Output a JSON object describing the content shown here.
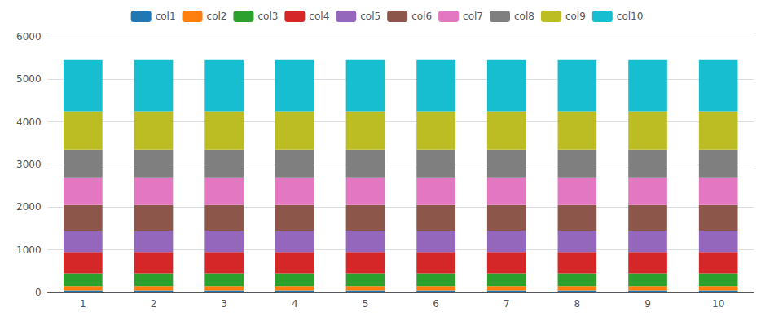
{
  "chart_data": {
    "type": "bar",
    "stacked": true,
    "categories": [
      1,
      2,
      3,
      4,
      5,
      6,
      7,
      8,
      9,
      10
    ],
    "series": [
      {
        "name": "col1",
        "color": "#1f77b4",
        "values": [
          50,
          50,
          50,
          50,
          50,
          50,
          50,
          50,
          50,
          50
        ]
      },
      {
        "name": "col2",
        "color": "#ff7f0e",
        "values": [
          100,
          100,
          100,
          100,
          100,
          100,
          100,
          100,
          100,
          100
        ]
      },
      {
        "name": "col3",
        "color": "#2ca02c",
        "values": [
          300,
          300,
          300,
          300,
          300,
          300,
          300,
          300,
          300,
          300
        ]
      },
      {
        "name": "col4",
        "color": "#d62728",
        "values": [
          500,
          500,
          500,
          500,
          500,
          500,
          500,
          500,
          500,
          500
        ]
      },
      {
        "name": "col5",
        "color": "#9467bd",
        "values": [
          500,
          500,
          500,
          500,
          500,
          500,
          500,
          500,
          500,
          500
        ]
      },
      {
        "name": "col6",
        "color": "#8c564b",
        "values": [
          600,
          600,
          600,
          600,
          600,
          600,
          600,
          600,
          600,
          600
        ]
      },
      {
        "name": "col7",
        "color": "#e377c2",
        "values": [
          650,
          650,
          650,
          650,
          650,
          650,
          650,
          650,
          650,
          650
        ]
      },
      {
        "name": "col8",
        "color": "#7f7f7f",
        "values": [
          650,
          650,
          650,
          650,
          650,
          650,
          650,
          650,
          650,
          650
        ]
      },
      {
        "name": "col9",
        "color": "#bcbd22",
        "values": [
          900,
          900,
          900,
          900,
          900,
          900,
          900,
          900,
          900,
          900
        ]
      },
      {
        "name": "col10",
        "color": "#17becf",
        "values": [
          1200,
          1200,
          1200,
          1200,
          1200,
          1200,
          1200,
          1200,
          1200,
          1200
        ]
      }
    ],
    "ylim": [
      0,
      6000
    ],
    "yticks": [
      0,
      1000,
      2000,
      3000,
      4000,
      5000,
      6000
    ],
    "grid": true,
    "legend": "top"
  }
}
